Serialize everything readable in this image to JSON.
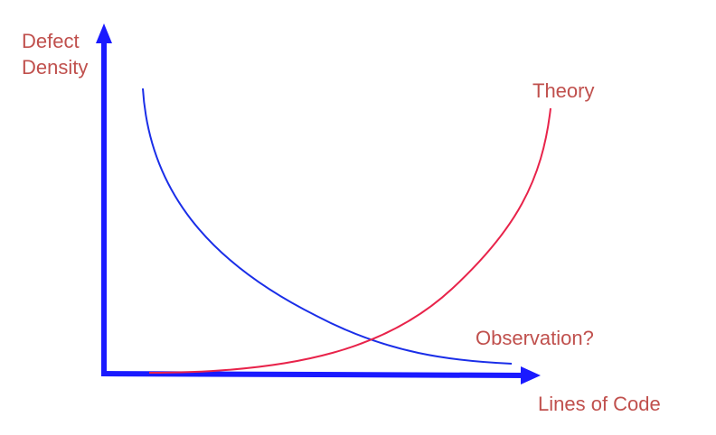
{
  "axes": {
    "y_label_lines": [
      "Defect",
      "Density"
    ],
    "x_label": "Lines of Code"
  },
  "curves": {
    "theory": {
      "label": "Theory",
      "trend": "increasing"
    },
    "observation": {
      "label": "Observation?",
      "trend": "decreasing"
    }
  },
  "colors": {
    "axis": "#1a1aff",
    "label_text": "#c0504d",
    "theory_curve": "#e8234a",
    "observation_curve": "#1a2ee8"
  }
}
